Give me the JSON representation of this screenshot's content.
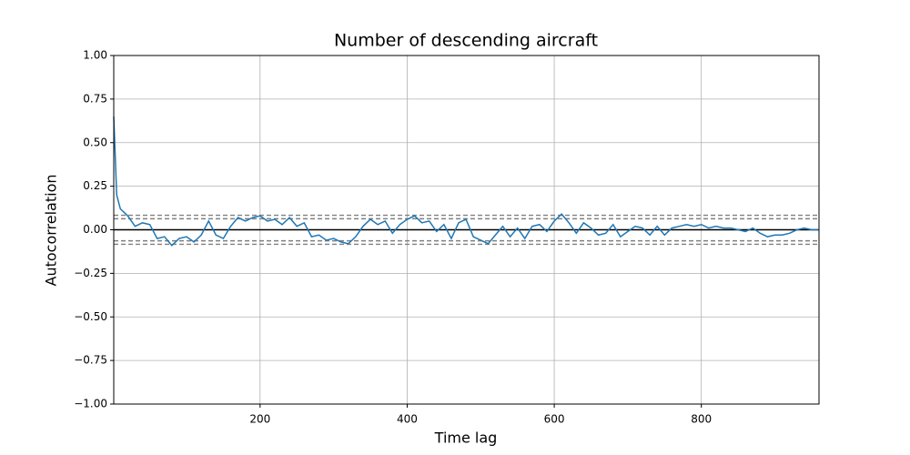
{
  "chart_data": {
    "type": "line",
    "title": "Number of descending aircraft",
    "x_label": "Time lag",
    "y_label": "Autocorrelation",
    "x": [
      1,
      5,
      10,
      15,
      20,
      30,
      40,
      50,
      60,
      70,
      80,
      90,
      100,
      110,
      120,
      130,
      140,
      150,
      160,
      170,
      180,
      190,
      200,
      210,
      220,
      230,
      240,
      250,
      260,
      270,
      280,
      290,
      300,
      310,
      320,
      330,
      340,
      350,
      360,
      370,
      380,
      390,
      400,
      410,
      420,
      430,
      440,
      450,
      460,
      470,
      480,
      490,
      500,
      510,
      520,
      530,
      540,
      550,
      560,
      570,
      580,
      590,
      600,
      610,
      620,
      630,
      640,
      650,
      660,
      670,
      680,
      690,
      700,
      710,
      720,
      730,
      740,
      750,
      760,
      770,
      780,
      790,
      800,
      810,
      820,
      830,
      840,
      850,
      860,
      870,
      880,
      890,
      900,
      910,
      920,
      930,
      940,
      950,
      960
    ],
    "series": [
      {
        "name": "Autocorrelation",
        "color": "#1f77b4",
        "values": [
          0.65,
          0.2,
          0.12,
          0.1,
          0.08,
          0.02,
          0.04,
          0.03,
          -0.05,
          -0.04,
          -0.09,
          -0.05,
          -0.04,
          -0.07,
          -0.03,
          0.05,
          -0.03,
          -0.05,
          0.02,
          0.07,
          0.05,
          0.07,
          0.08,
          0.05,
          0.06,
          0.03,
          0.07,
          0.02,
          0.04,
          -0.04,
          -0.03,
          -0.06,
          -0.05,
          -0.07,
          -0.08,
          -0.04,
          0.02,
          0.06,
          0.03,
          0.05,
          -0.02,
          0.03,
          0.06,
          0.08,
          0.04,
          0.05,
          -0.01,
          0.03,
          -0.05,
          0.04,
          0.06,
          -0.04,
          -0.06,
          -0.08,
          -0.03,
          0.02,
          -0.04,
          0.01,
          -0.05,
          0.02,
          0.03,
          -0.01,
          0.05,
          0.09,
          0.04,
          -0.02,
          0.04,
          0.01,
          -0.03,
          -0.02,
          0.03,
          -0.04,
          -0.01,
          0.02,
          0.01,
          -0.03,
          0.02,
          -0.03,
          0.01,
          0.02,
          0.03,
          0.02,
          0.03,
          0.01,
          0.02,
          0.01,
          0.01,
          0.0,
          -0.01,
          0.01,
          -0.02,
          -0.04,
          -0.03,
          -0.03,
          -0.02,
          0.0,
          0.01,
          0.0,
          0.0
        ]
      }
    ],
    "hlines": [
      {
        "value": 0.0831,
        "color": "#808080",
        "style": "dashed"
      },
      {
        "value": 0.0633,
        "color": "#808080",
        "style": "dashed"
      },
      {
        "value": 0,
        "color": "#000000",
        "style": "solid"
      },
      {
        "value": -0.0633,
        "color": "#808080",
        "style": "dashed"
      },
      {
        "value": -0.0831,
        "color": "#808080",
        "style": "dashed"
      }
    ],
    "xlim": [
      1,
      960
    ],
    "ylim": [
      -1,
      1
    ],
    "xticks": [
      200,
      400,
      600,
      800
    ],
    "yticks": [
      {
        "value": -1,
        "label": "−1.00"
      },
      {
        "value": -0.75,
        "label": "−0.75"
      },
      {
        "value": -0.5,
        "label": "−0.50"
      },
      {
        "value": -0.25,
        "label": "−0.25"
      },
      {
        "value": 0,
        "label": "0.00"
      },
      {
        "value": 0.25,
        "label": "0.25"
      },
      {
        "value": 0.5,
        "label": "0.50"
      },
      {
        "value": 0.75,
        "label": "0.75"
      },
      {
        "value": 1,
        "label": "1.00"
      }
    ],
    "grid": true
  }
}
